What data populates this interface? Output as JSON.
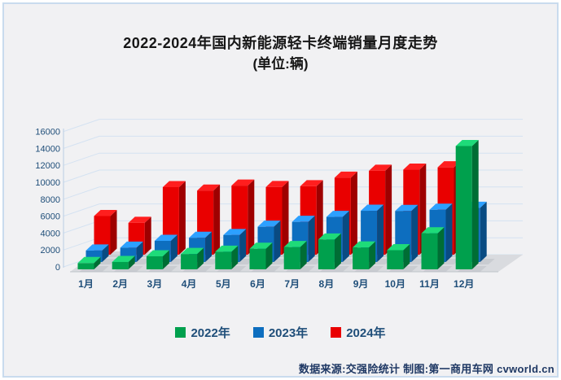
{
  "title": "2022-2024年国内新能源轻卡终端销量月度走势",
  "subtitle": "(单位:辆)",
  "footer": "数据来源:交强险统计 制图:第一商用车网 cvworld.cn",
  "chart_data": {
    "type": "bar",
    "variant": "3d-column",
    "title": "2022-2024年国内新能源轻卡终端销量月度走势",
    "unit_label": "(单位:辆)",
    "categories": [
      "1月",
      "2月",
      "3月",
      "4月",
      "5月",
      "6月",
      "7月",
      "8月",
      "9月",
      "10月",
      "11月",
      "12月"
    ],
    "series": [
      {
        "name": "2022年",
        "color": "#00a04d",
        "values": [
          740,
          870,
          1540,
          1810,
          2080,
          2430,
          2630,
          3520,
          2580,
          2260,
          4260,
          14570
        ]
      },
      {
        "name": "2023年",
        "color": "#0d6ebf",
        "values": [
          1460,
          1820,
          2690,
          3080,
          3430,
          4480,
          5100,
          5730,
          6510,
          6490,
          6640,
          6890
        ]
      },
      {
        "name": "2024年",
        "color": "#e90000",
        "values": [
          5310,
          4370,
          9280,
          8810,
          9490,
          9290,
          9400,
          10580,
          11530,
          11680,
          12000,
          null
        ]
      }
    ],
    "ylim": [
      0,
      16000
    ],
    "ytick_step": 2000,
    "yticks": [
      0,
      2000,
      4000,
      6000,
      8000,
      10000,
      12000,
      14000,
      16000
    ],
    "grid": true,
    "legend_position": "bottom"
  },
  "colors": {
    "panel_background": "#f1f1f3",
    "panel_border": "#c9dbee",
    "gridline": "#d4e2f2",
    "axis_line": "#b9cde3",
    "floor": "#d9dbdf",
    "axis_text": "#1f4e79",
    "footer_text": "#1f3864",
    "title_text": "#161616"
  }
}
